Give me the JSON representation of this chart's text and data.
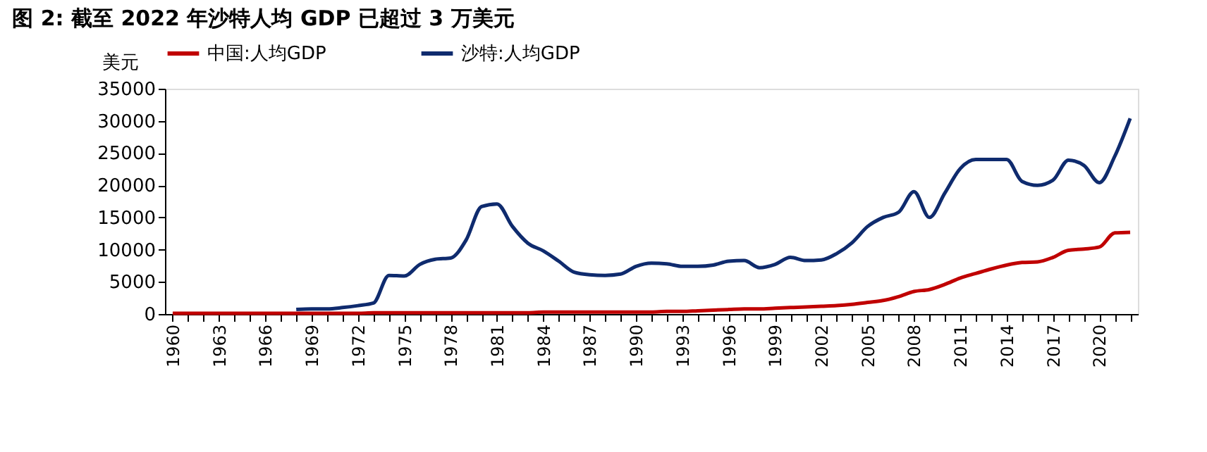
{
  "chart_data": {
    "type": "line",
    "title": "图 2: 截至 2022 年沙特人均 GDP 已超过 3 万美元",
    "ylabel": "美元",
    "categories": [
      "1960",
      null,
      null,
      "1963",
      null,
      null,
      "1966",
      null,
      null,
      "1969",
      null,
      null,
      "1972",
      null,
      null,
      "1975",
      null,
      null,
      "1978",
      null,
      null,
      "1981",
      null,
      null,
      "1984",
      null,
      null,
      "1987",
      null,
      null,
      "1990",
      null,
      null,
      "1993",
      null,
      null,
      "1996",
      null,
      null,
      "1999",
      null,
      null,
      "2002",
      null,
      null,
      "2005",
      null,
      null,
      "2008",
      null,
      null,
      "2011",
      null,
      null,
      "2014",
      null,
      null,
      "2017",
      null,
      null,
      "2020",
      null,
      null
    ],
    "series": [
      {
        "name": "中国:人均GDP",
        "color": "#c00000",
        "values": [
          100,
          100,
          100,
          100,
          100,
          100,
          100,
          100,
          100,
          100,
          100,
          100,
          100,
          200,
          200,
          200,
          200,
          200,
          200,
          200,
          200,
          200,
          200,
          200,
          300,
          300,
          300,
          300,
          300,
          300,
          300,
          300,
          400,
          400,
          500,
          600,
          700,
          800,
          800,
          900,
          1000,
          1100,
          1200,
          1300,
          1500,
          1800,
          2100,
          2700,
          3500,
          3800,
          4600,
          5600,
          6300,
          7000,
          7600,
          8000,
          8100,
          8800,
          9900,
          10100,
          10400,
          12600,
          12700
        ]
      },
      {
        "name": "沙特:人均GDP",
        "color": "#0f2b6e",
        "values": [
          null,
          null,
          null,
          null,
          null,
          null,
          null,
          null,
          700,
          800,
          800,
          1000,
          1300,
          1700,
          6000,
          5900,
          7700,
          8500,
          8700,
          11500,
          16700,
          17100,
          13600,
          11000,
          9800,
          8200,
          6500,
          6100,
          6000,
          6200,
          7400,
          7900,
          7800,
          7400,
          7400,
          7600,
          8200,
          8300,
          7200,
          7700,
          8800,
          8300,
          8400,
          9400,
          11100,
          13600,
          15000,
          15800,
          19000,
          15000,
          18800,
          22600,
          24000,
          24000,
          24000,
          20600,
          20000,
          20800,
          23900,
          23100,
          20400,
          24500,
          30400
        ]
      }
    ],
    "ylim": [
      0,
      35000
    ],
    "yticks": [
      0,
      5000,
      10000,
      15000,
      20000,
      25000,
      30000,
      35000
    ],
    "grid": false,
    "legend": "top"
  }
}
